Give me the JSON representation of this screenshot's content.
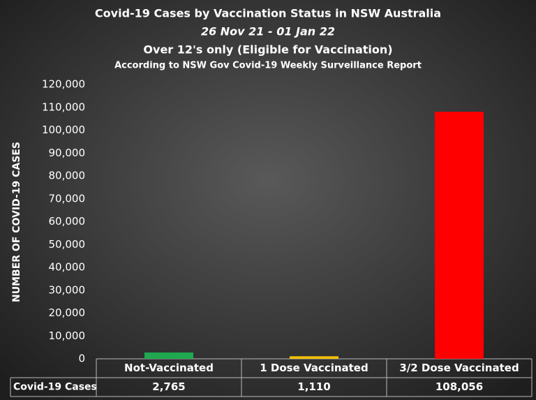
{
  "chart_data": {
    "type": "bar",
    "title": "Covid-19 Cases by Vaccination Status in NSW Australia",
    "subtitle": "26 Nov 21 - 01 Jan 22",
    "subtitle2": "Over 12's only (Eligible for Vaccination)",
    "subtitle3": "According to NSW Gov Covid-19 Weekly Surveillance Report",
    "y_label": "NUMBER OF COVID-19 CASES",
    "categories": [
      "Not-Vaccinated",
      "1 Dose Vaccinated",
      "3/2 Dose Vaccinated"
    ],
    "series": [
      {
        "name": "Covid-19 Cases",
        "colors": [
          "#1fa84f",
          "#f2c200",
          "#ff0000"
        ],
        "values": [
          2765,
          1110,
          108056
        ],
        "value_labels": [
          "2,765",
          "1,110",
          "108,056"
        ]
      }
    ],
    "ylim": [
      0,
      120000
    ],
    "yticks": [
      0,
      {
        "value": 10000,
        "label": "10,000"
      },
      {
        "value": 20000,
        "label": "20,000"
      },
      {
        "value": 30000,
        "label": "30,000"
      },
      {
        "value": 40000,
        "label": "40,000"
      },
      {
        "value": 50000,
        "label": "50,000"
      },
      {
        "value": 60000,
        "label": "60,000"
      },
      {
        "value": 70000,
        "label": "70,000"
      },
      {
        "value": 80000,
        "label": "80,000"
      },
      {
        "value": 90000,
        "label": "90,000"
      },
      {
        "value": 100000,
        "label": "100,000"
      },
      {
        "value": 110000,
        "label": "110,000"
      },
      {
        "value": 120000,
        "label": "120,000"
      }
    ],
    "grid": false
  }
}
